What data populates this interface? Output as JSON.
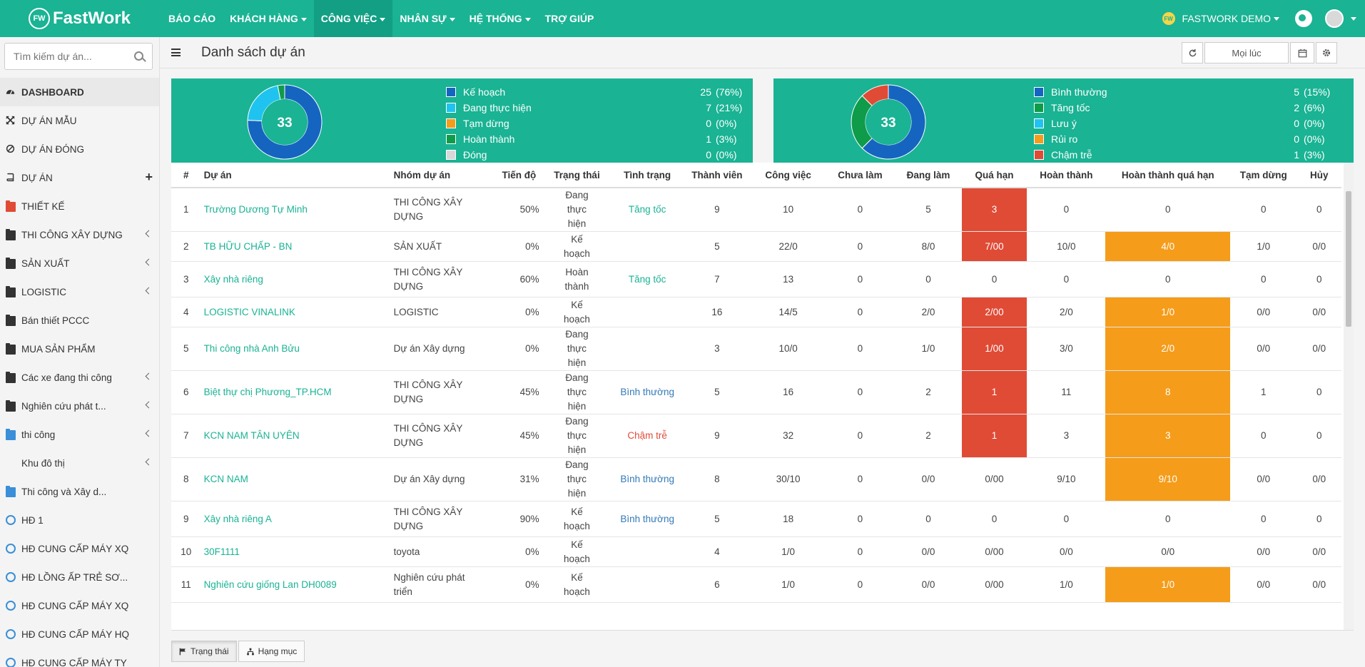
{
  "app": {
    "logo_text": "FastWork",
    "logo_badge": "FW"
  },
  "nav": [
    {
      "label": "BÁO CÁO",
      "caret": false,
      "active": false
    },
    {
      "label": "KHÁCH HÀNG",
      "caret": true,
      "active": false
    },
    {
      "label": "CÔNG VIỆC",
      "caret": true,
      "active": true
    },
    {
      "label": "NHÂN SỰ",
      "caret": true,
      "active": false
    },
    {
      "label": "HỆ THỐNG",
      "caret": true,
      "active": false
    },
    {
      "label": "TRỢ GIÚP",
      "caret": false,
      "active": false
    }
  ],
  "user": {
    "badge": "FW",
    "name": "FASTWORK DEMO"
  },
  "sidebar": {
    "search_placeholder": "Tìm kiếm dự án...",
    "items": [
      {
        "label": "DASHBOARD",
        "icon": "dashboard-icon",
        "active": true
      },
      {
        "label": "DỰ ÁN MẪU",
        "icon": "cross-arrows-icon"
      },
      {
        "label": "DỰ ÁN ĐÓNG",
        "icon": "ban-icon"
      },
      {
        "label": "DỰ ÁN",
        "icon": "book-icon",
        "plus": "+"
      },
      {
        "label": "THIẾT KẾ",
        "icon": "folder-icon",
        "color": "#e04b36"
      },
      {
        "label": "THI CÔNG XÂY DỰNG",
        "icon": "folder-icon",
        "color": "#333333",
        "arrow": true
      },
      {
        "label": "SẢN XUẤT",
        "icon": "folder-icon",
        "color": "#333333",
        "arrow": true
      },
      {
        "label": "LOGISTIC",
        "icon": "folder-icon",
        "color": "#333333",
        "arrow": true
      },
      {
        "label": "Bán thiết PCCC",
        "icon": "folder-icon",
        "color": "#333333"
      },
      {
        "label": "MUA SẢN PHẨM",
        "icon": "folder-icon",
        "color": "#333333"
      },
      {
        "label": "Các xe đang thi công",
        "icon": "folder-icon",
        "color": "#333333",
        "arrow": true
      },
      {
        "label": "Nghiên cứu phát t...",
        "icon": "folder-icon",
        "color": "#333333",
        "arrow": true
      },
      {
        "label": "thi công",
        "icon": "folder-icon",
        "color": "#3a8fd8",
        "arrow": true
      },
      {
        "label": "Khu đô thị",
        "icon": "",
        "arrow": true
      },
      {
        "label": "Thi công và Xây d...",
        "icon": "folder-icon",
        "color": "#3a8fd8"
      },
      {
        "label": "HĐ 1",
        "icon": "circle-icon"
      },
      {
        "label": "HĐ CUNG CẤP MÁY XQ",
        "icon": "circle-icon"
      },
      {
        "label": "HĐ LỒNG ẤP TRẺ SƠ...",
        "icon": "circle-icon"
      },
      {
        "label": "HĐ CUNG CẤP MÁY XQ",
        "icon": "circle-icon"
      },
      {
        "label": "HĐ CUNG CẤP MÁY HQ",
        "icon": "circle-icon"
      },
      {
        "label": "HĐ CUNG CẤP MÁY TY",
        "icon": "circle-icon"
      }
    ]
  },
  "page": {
    "title": "Danh sách dự án",
    "date_filter": "Mọi lúc"
  },
  "status_panel": {
    "total": "33",
    "items": [
      {
        "label": "Kế hoạch",
        "count": "25",
        "pct": "(76%)",
        "value": 25,
        "color": "#1565c0"
      },
      {
        "label": "Đang thực hiện",
        "count": "7",
        "pct": "(21%)",
        "value": 7,
        "color": "#1fc3ef"
      },
      {
        "label": "Tạm dừng",
        "count": "0",
        "pct": "(0%)",
        "value": 0,
        "color": "#f59c1a"
      },
      {
        "label": "Hoàn thành",
        "count": "1",
        "pct": "(3%)",
        "value": 1,
        "color": "#0e9b4a"
      },
      {
        "label": "Đóng",
        "count": "0",
        "pct": "(0%)",
        "value": 0,
        "color": "#d8d8d8"
      }
    ]
  },
  "condition_panel": {
    "total": "33",
    "items": [
      {
        "label": "Bình thường",
        "count": "5",
        "pct": "(15%)",
        "value": 5,
        "color": "#1565c0"
      },
      {
        "label": "Tăng tốc",
        "count": "2",
        "pct": "(6%)",
        "value": 2,
        "color": "#0e9b4a"
      },
      {
        "label": "Lưu ý",
        "count": "0",
        "pct": "(0%)",
        "value": 0,
        "color": "#1fc3ef"
      },
      {
        "label": "Rủi ro",
        "count": "0",
        "pct": "(0%)",
        "value": 0,
        "color": "#f59c1a"
      },
      {
        "label": "Chậm trễ",
        "count": "1",
        "pct": "(3%)",
        "value": 1,
        "color": "#e04b36"
      }
    ]
  },
  "table": {
    "headers": [
      "#",
      "Dự án",
      "Nhóm dự án",
      "Tiến độ",
      "Trạng thái",
      "Tình trạng",
      "Thành viên",
      "Công việc",
      "Chưa làm",
      "Đang làm",
      "Quá hạn",
      "Hoàn thành",
      "Hoàn thành quá hạn",
      "Tạm dừng",
      "Hủy"
    ],
    "rows": [
      {
        "no": "1",
        "name": "Trường Dương Tự Minh",
        "group": "THI CÔNG XÂY DỰNG",
        "progress": "50%",
        "status": "Đang thực hiện",
        "condition": "Tăng tốc",
        "cond_class": "st-green",
        "members": "9",
        "tasks": "10",
        "todo": "0",
        "doing": "5",
        "overdue": "3",
        "overdue_hl": true,
        "done": "0",
        "done_late": "0",
        "done_late_hl": false,
        "paused": "0",
        "cancel": "0"
      },
      {
        "no": "2",
        "name": "TB HỮU CHẤP - BN",
        "group": "SẢN XUẤT",
        "progress": "0%",
        "status": "Kế hoạch",
        "condition": "",
        "cond_class": "",
        "members": "5",
        "tasks": "22/0",
        "todo": "0",
        "doing": "8/0",
        "overdue": "7/00",
        "overdue_hl": true,
        "done": "10/0",
        "done_late": "4/0",
        "done_late_hl": true,
        "paused": "1/0",
        "cancel": "0/0"
      },
      {
        "no": "3",
        "name": "Xây nhà riêng",
        "group": "THI CÔNG XÂY DỰNG",
        "progress": "60%",
        "status": "Hoàn thành",
        "condition": "Tăng tốc",
        "cond_class": "st-green",
        "members": "7",
        "tasks": "13",
        "todo": "0",
        "doing": "0",
        "overdue": "0",
        "overdue_hl": false,
        "done": "0",
        "done_late": "0",
        "done_late_hl": false,
        "paused": "0",
        "cancel": "0"
      },
      {
        "no": "4",
        "name": "LOGISTIC VINALINK",
        "group": "LOGISTIC",
        "progress": "0%",
        "status": "Kế hoạch",
        "condition": "",
        "cond_class": "",
        "members": "16",
        "tasks": "14/5",
        "todo": "0",
        "doing": "2/0",
        "overdue": "2/00",
        "overdue_hl": true,
        "done": "2/0",
        "done_late": "1/0",
        "done_late_hl": true,
        "paused": "0/0",
        "cancel": "0/0"
      },
      {
        "no": "5",
        "name": "Thi công nhà Anh Bửu",
        "group": "Dự án Xây dựng",
        "progress": "0%",
        "status": "Đang thực hiện",
        "condition": "",
        "cond_class": "",
        "members": "3",
        "tasks": "10/0",
        "todo": "0",
        "doing": "1/0",
        "overdue": "1/00",
        "overdue_hl": true,
        "done": "3/0",
        "done_late": "2/0",
        "done_late_hl": true,
        "paused": "0/0",
        "cancel": "0/0"
      },
      {
        "no": "6",
        "name": "Biệt thự chị Phương_TP.HCM",
        "group": "THI CÔNG XÂY DỰNG",
        "progress": "45%",
        "status": "Đang thực hiện",
        "condition": "Bình thường",
        "cond_class": "st-blue",
        "members": "5",
        "tasks": "16",
        "todo": "0",
        "doing": "2",
        "overdue": "1",
        "overdue_hl": true,
        "done": "11",
        "done_late": "8",
        "done_late_hl": true,
        "paused": "1",
        "cancel": "0"
      },
      {
        "no": "7",
        "name": "KCN NAM TÂN UYÊN",
        "group": "THI CÔNG XÂY DỰNG",
        "progress": "45%",
        "status": "Đang thực hiện",
        "condition": "Chậm trễ",
        "cond_class": "st-red",
        "members": "9",
        "tasks": "32",
        "todo": "0",
        "doing": "2",
        "overdue": "1",
        "overdue_hl": true,
        "done": "3",
        "done_late": "3",
        "done_late_hl": true,
        "paused": "0",
        "cancel": "0"
      },
      {
        "no": "8",
        "name": "KCN NAM",
        "group": "Dự án Xây dựng",
        "progress": "31%",
        "status": "Đang thực hiện",
        "condition": "Bình thường",
        "cond_class": "st-blue",
        "members": "8",
        "tasks": "30/10",
        "todo": "0",
        "doing": "0/0",
        "overdue": "0/00",
        "overdue_hl": false,
        "done": "9/10",
        "done_late": "9/10",
        "done_late_hl": true,
        "paused": "0/0",
        "cancel": "0/0"
      },
      {
        "no": "9",
        "name": "Xây nhà riêng A",
        "group": "THI CÔNG XÂY DỰNG",
        "progress": "90%",
        "status": "Kế hoạch",
        "condition": "Bình thường",
        "cond_class": "st-blue",
        "members": "5",
        "tasks": "18",
        "todo": "0",
        "doing": "0",
        "overdue": "0",
        "overdue_hl": false,
        "done": "0",
        "done_late": "0",
        "done_late_hl": false,
        "paused": "0",
        "cancel": "0"
      },
      {
        "no": "10",
        "name": "30F1111",
        "group": "toyota",
        "progress": "0%",
        "status": "Kế hoạch",
        "condition": "",
        "cond_class": "",
        "members": "4",
        "tasks": "1/0",
        "todo": "0",
        "doing": "0/0",
        "overdue": "0/00",
        "overdue_hl": false,
        "done": "0/0",
        "done_late": "0/0",
        "done_late_hl": false,
        "paused": "0/0",
        "cancel": "0/0"
      },
      {
        "no": "11",
        "name": "Nghiên cứu giống Lan DH0089",
        "group": "Nghiên cứu phát triển",
        "progress": "0%",
        "status": "Kế hoạch",
        "condition": "",
        "cond_class": "",
        "members": "6",
        "tasks": "1/0",
        "todo": "0",
        "doing": "0/0",
        "overdue": "0/00",
        "overdue_hl": false,
        "done": "1/0",
        "done_late": "1/0",
        "done_late_hl": true,
        "paused": "0/0",
        "cancel": "0/0"
      }
    ]
  },
  "bottom_tabs": [
    {
      "label": "Trạng thái",
      "icon": "flag-icon",
      "active": true
    },
    {
      "label": "Hạng mục",
      "icon": "sitemap-icon",
      "active": false
    }
  ]
}
